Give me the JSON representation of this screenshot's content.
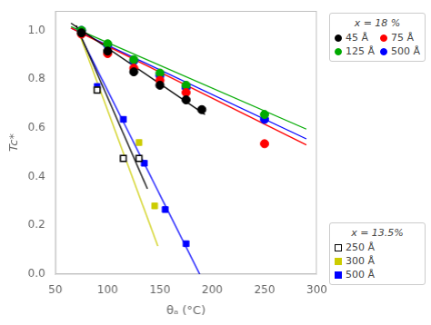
{
  "chart_data": {
    "type": "scatter",
    "xlabel": "θₐ (°C)",
    "ylabel": "Tc*",
    "xlim": [
      50,
      300
    ],
    "ylim": [
      0.0,
      1.08
    ],
    "xticks": [
      50,
      100,
      150,
      200,
      250,
      300
    ],
    "yticks": [
      {
        "value": 0.0,
        "label": "0.0"
      },
      0.2,
      0.4,
      0.6,
      0.8,
      {
        "value": 1.0,
        "label": "1.0"
      }
    ],
    "grid": false,
    "legend": "right",
    "series_groups": [
      {
        "title": "x = 18 %",
        "marker": "circle",
        "series": [
          {
            "name": "45 Å",
            "color": "black",
            "x": [
              75,
              100,
              125,
              150,
              175,
              190
            ],
            "values": [
              0.99,
              0.915,
              0.83,
              0.775,
              0.715,
              0.675
            ],
            "fit": {
              "x": [
                65,
                193
              ],
              "values": [
                1.03,
                0.655
              ]
            }
          },
          {
            "name": "75 Å",
            "color": "red",
            "x": [
              75,
              100,
              125,
              150,
              175,
              250
            ],
            "values": [
              0.985,
              0.905,
              0.845,
              0.795,
              0.745,
              0.535
            ],
            "fit": {
              "x": [
                65,
                290
              ],
              "values": [
                1.01,
                0.53
              ]
            }
          },
          {
            "name": "125 Å",
            "color": "#00aa00",
            "x": [
              75,
              100,
              125,
              150,
              175,
              250
            ],
            "values": [
              1.0,
              0.945,
              0.88,
              0.825,
              0.775,
              0.655
            ],
            "fit": {
              "x": [
                65,
                290
              ],
              "values": [
                1.015,
                0.595
              ]
            }
          },
          {
            "name": "500 Å",
            "color": "blue",
            "x": [
              75,
              100,
              125,
              150,
              175,
              250
            ],
            "values": [
              1.0,
              0.94,
              0.875,
              0.815,
              0.765,
              0.635
            ],
            "fit": {
              "x": [
                65,
                290
              ],
              "values": [
                1.01,
                0.555
              ]
            }
          }
        ]
      },
      {
        "title": "x = 13.5%",
        "marker": "square",
        "series": [
          {
            "name": "250 Å",
            "color": "black",
            "marker": "square_open",
            "x": [
              90,
              115,
              130
            ],
            "values": [
              0.755,
              0.475,
              0.475
            ],
            "fit": {
              "x": [
                70,
                138
              ],
              "values": [
                1.02,
                0.35
              ]
            }
          },
          {
            "name": "300 Å",
            "color": "#cccc00",
            "x": [
              90,
              130,
              145
            ],
            "values": [
              0.755,
              0.54,
              0.28
            ],
            "fit": {
              "x": [
                70,
                148
              ],
              "values": [
                1.02,
                0.115
              ]
            }
          },
          {
            "name": "500 Å",
            "color": "blue",
            "x": [
              90,
              115,
              135,
              155,
              175
            ],
            "values": [
              0.77,
              0.635,
              0.455,
              0.265,
              0.125
            ],
            "fit": {
              "x": [
                70,
                188
              ],
              "values": [
                1.01,
                0.0
              ]
            }
          }
        ]
      }
    ]
  }
}
